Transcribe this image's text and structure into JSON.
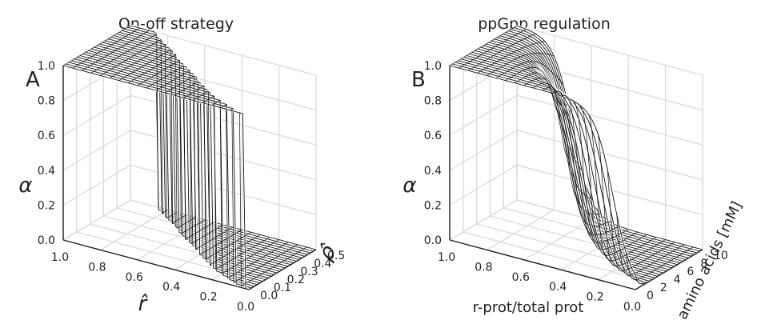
{
  "chart_data": [
    {
      "type": "surface",
      "panel_letter": "A",
      "title": "On-off strategy",
      "xlabel": "r̂",
      "ylabel": "ρ̂",
      "zlabel": "α",
      "x_ticks": [
        "1.0",
        "0.8",
        "0.6",
        "0.4",
        "0.2",
        "0.0"
      ],
      "y_ticks": [
        "0.0",
        "0.1",
        "0.2",
        "0.3",
        "0.4",
        "0.5"
      ],
      "z_ticks": [
        "0.0",
        "0.2",
        "0.4",
        "0.6",
        "0.8",
        "1.0"
      ],
      "xlim": [
        0,
        1
      ],
      "ylim": [
        0,
        0.5
      ],
      "zlim": [
        0,
        1
      ],
      "grid": true,
      "surface": "step: alpha = 1 when r-hat < threshold(rho-hat), else 0",
      "threshold": {
        "y": [
          0.0,
          0.025,
          0.05,
          0.1,
          0.15,
          0.2,
          0.25,
          0.3,
          0.35,
          0.4,
          0.45,
          0.5
        ],
        "x": [
          0.02,
          0.1,
          0.17,
          0.27,
          0.35,
          0.42,
          0.5,
          0.58,
          0.64,
          0.72,
          0.8,
          0.86
        ]
      }
    },
    {
      "type": "surface",
      "panel_letter": "B",
      "title": "ppGpp regulation",
      "xlabel": "r-prot/total prot",
      "ylabel": "amino acids [mM]",
      "zlabel": "α",
      "x_ticks": [
        "1.0",
        "0.8",
        "0.6",
        "0.4",
        "0.2",
        "0.0"
      ],
      "y_ticks": [
        "0",
        "2",
        "4",
        "6",
        "8",
        "10"
      ],
      "z_ticks": [
        "0.0",
        "0.2",
        "0.4",
        "0.6",
        "0.8",
        "1.0"
      ],
      "xlim": [
        0,
        1
      ],
      "ylim": [
        0,
        10
      ],
      "zlim": [
        0,
        1
      ],
      "grid": true,
      "surface": "sigmoid in r-prot fraction; midpoint rises with amino acid concentration",
      "midpoint": {
        "y": [
          0,
          2,
          4,
          6,
          8,
          10
        ],
        "x": [
          0.12,
          0.35,
          0.5,
          0.6,
          0.66,
          0.7
        ]
      },
      "steepness": 20
    }
  ]
}
